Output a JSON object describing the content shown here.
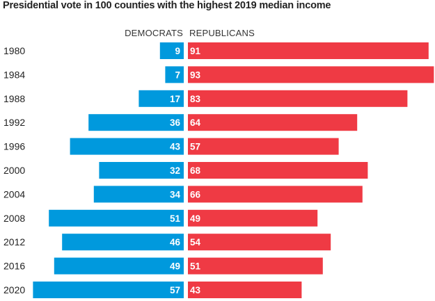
{
  "chart_data": {
    "type": "bar",
    "title": "Presidential vote in 100 counties with the highest 2019 median income",
    "categories": [
      "1980",
      "1984",
      "1988",
      "1992",
      "1996",
      "2000",
      "2004",
      "2008",
      "2012",
      "2016",
      "2020"
    ],
    "series": [
      {
        "name": "DEMOCRATS",
        "color": "#0099dd",
        "values": [
          9,
          7,
          17,
          36,
          43,
          32,
          34,
          51,
          46,
          49,
          57
        ]
      },
      {
        "name": "REPUBLICANS",
        "color": "#ef3a44",
        "values": [
          91,
          93,
          83,
          64,
          57,
          68,
          66,
          49,
          54,
          51,
          43
        ]
      }
    ],
    "xlabel": "",
    "ylabel": "",
    "orientation": "horizontal-diverging",
    "legend": "top-center"
  }
}
